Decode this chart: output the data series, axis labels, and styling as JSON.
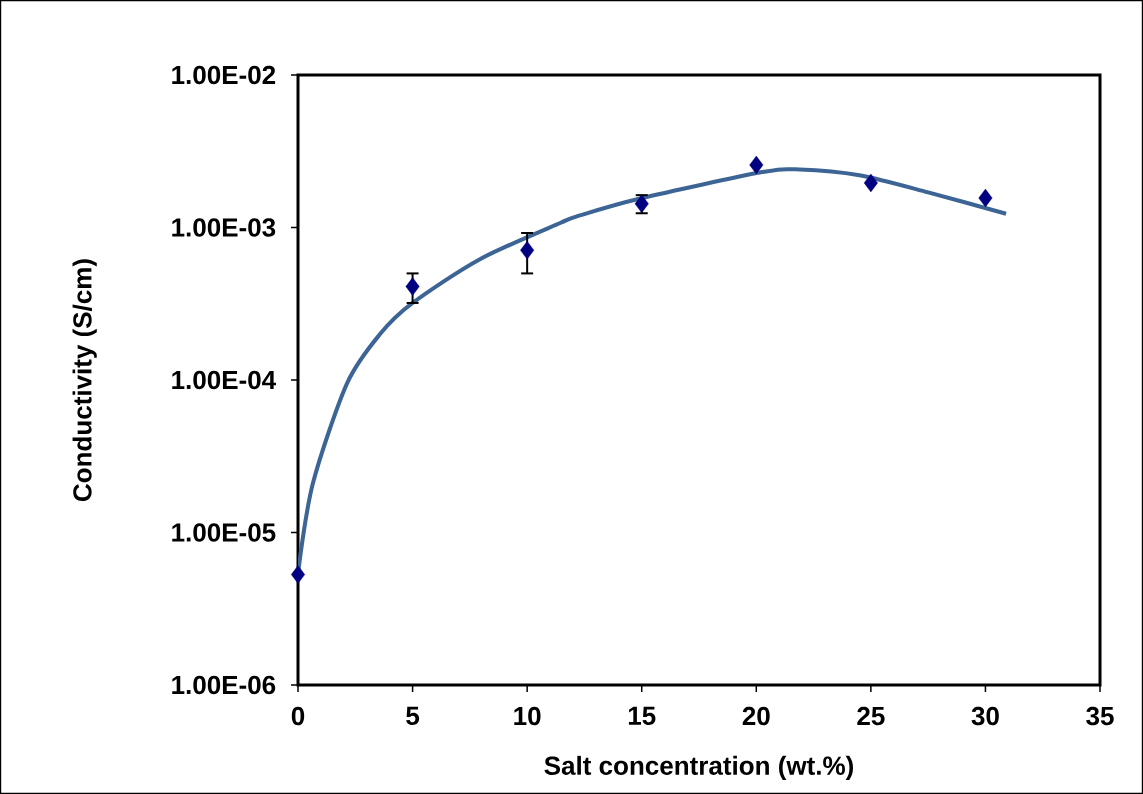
{
  "chart_data": {
    "type": "scatter",
    "xlabel": "Salt concentration (wt.%)",
    "ylabel": "Conductivity (S/cm)",
    "log": "y",
    "xlim": [
      0,
      35
    ],
    "ylim": [
      1e-06,
      0.01
    ],
    "xticks": [
      0,
      5,
      10,
      15,
      20,
      25,
      30,
      35
    ],
    "yticks": [
      {
        "value": 1e-06,
        "label": "1.00E-06"
      },
      {
        "value": 1e-05,
        "label": "1.00E-05"
      },
      {
        "value": 0.0001,
        "label": "1.00E-04"
      },
      {
        "value": 0.001,
        "label": "1.00E-03"
      },
      {
        "value": 0.01,
        "label": "1.00E-02"
      }
    ],
    "series": [
      {
        "type": "line",
        "marker": "none",
        "color": "#3c6494",
        "x": [
          0,
          0.65,
          2.14,
          3.58,
          5.0,
          7.94,
          11.44,
          12.3,
          14.93,
          20.2,
          21.9,
          24.5,
          27.5,
          30.9
        ],
        "values": [
          5.4e-06,
          2.1e-05,
          9.5e-05,
          0.0002,
          0.00032,
          0.00062,
          0.00107,
          0.0012,
          0.00155,
          0.0023,
          0.0024,
          0.0022,
          0.0017,
          0.00123
        ]
      },
      {
        "marker": "diamond",
        "color": "#000080",
        "x": [
          0,
          5,
          10,
          15,
          20,
          25,
          30
        ],
        "values": [
          5.3e-06,
          0.00041,
          0.00071,
          0.00143,
          0.00257,
          0.00196,
          0.00156
        ],
        "errors": [
          null,
          [
            0.00032,
            0.0005
          ],
          [
            0.0005,
            0.00092
          ],
          [
            0.00124,
            0.00163
          ],
          null,
          null,
          null
        ]
      }
    ]
  }
}
